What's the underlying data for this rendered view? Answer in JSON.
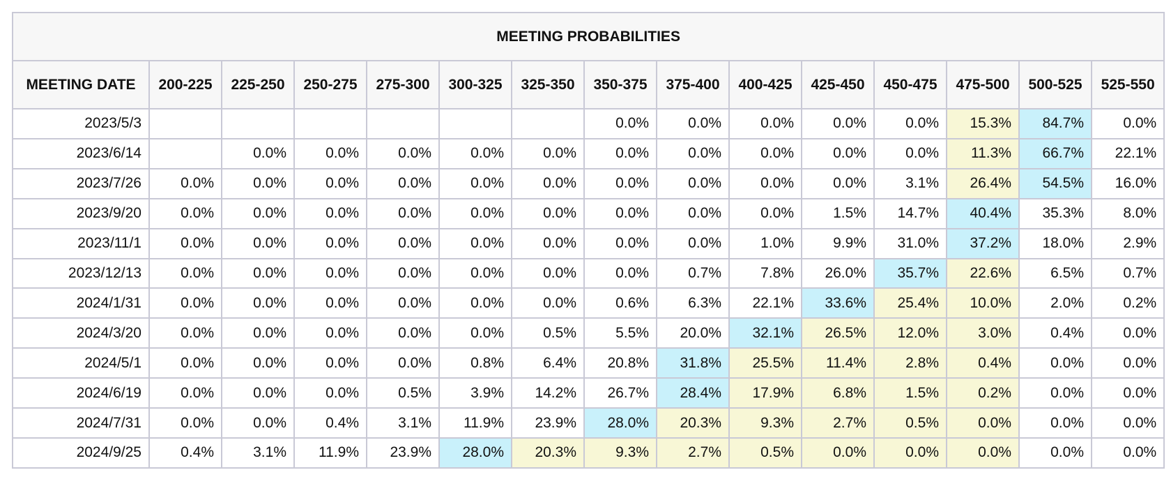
{
  "title": "MEETING PROBABILITIES",
  "header": {
    "date_col": "MEETING DATE",
    "ranges": [
      "200-225",
      "225-250",
      "250-275",
      "275-300",
      "300-325",
      "325-350",
      "350-375",
      "375-400",
      "400-425",
      "425-450",
      "450-475",
      "475-500",
      "500-525",
      "525-550"
    ]
  },
  "colors": {
    "mode": "#c9f1fb",
    "near": "#f8f7d6",
    "border": "#c9c9d6",
    "header_bg": "#f7f7f7"
  },
  "rows": [
    {
      "date": "2023/5/3",
      "values": [
        "",
        "",
        "",
        "",
        "",
        "",
        "0.0%",
        "0.0%",
        "0.0%",
        "0.0%",
        "0.0%",
        "15.3%",
        "84.7%",
        "0.0%"
      ],
      "hl": [
        "",
        "",
        "",
        "",
        "",
        "",
        "",
        "",
        "",
        "",
        "",
        "y",
        "b",
        ""
      ]
    },
    {
      "date": "2023/6/14",
      "values": [
        "",
        "0.0%",
        "0.0%",
        "0.0%",
        "0.0%",
        "0.0%",
        "0.0%",
        "0.0%",
        "0.0%",
        "0.0%",
        "0.0%",
        "11.3%",
        "66.7%",
        "22.1%"
      ],
      "hl": [
        "",
        "",
        "",
        "",
        "",
        "",
        "",
        "",
        "",
        "",
        "",
        "y",
        "b",
        ""
      ]
    },
    {
      "date": "2023/7/26",
      "values": [
        "0.0%",
        "0.0%",
        "0.0%",
        "0.0%",
        "0.0%",
        "0.0%",
        "0.0%",
        "0.0%",
        "0.0%",
        "0.0%",
        "3.1%",
        "26.4%",
        "54.5%",
        "16.0%"
      ],
      "hl": [
        "",
        "",
        "",
        "",
        "",
        "",
        "",
        "",
        "",
        "",
        "",
        "y",
        "b",
        ""
      ]
    },
    {
      "date": "2023/9/20",
      "values": [
        "0.0%",
        "0.0%",
        "0.0%",
        "0.0%",
        "0.0%",
        "0.0%",
        "0.0%",
        "0.0%",
        "0.0%",
        "1.5%",
        "14.7%",
        "40.4%",
        "35.3%",
        "8.0%"
      ],
      "hl": [
        "",
        "",
        "",
        "",
        "",
        "",
        "",
        "",
        "",
        "",
        "",
        "b",
        "",
        ""
      ]
    },
    {
      "date": "2023/11/1",
      "values": [
        "0.0%",
        "0.0%",
        "0.0%",
        "0.0%",
        "0.0%",
        "0.0%",
        "0.0%",
        "0.0%",
        "1.0%",
        "9.9%",
        "31.0%",
        "37.2%",
        "18.0%",
        "2.9%"
      ],
      "hl": [
        "",
        "",
        "",
        "",
        "",
        "",
        "",
        "",
        "",
        "",
        "",
        "b",
        "",
        ""
      ]
    },
    {
      "date": "2023/12/13",
      "values": [
        "0.0%",
        "0.0%",
        "0.0%",
        "0.0%",
        "0.0%",
        "0.0%",
        "0.0%",
        "0.7%",
        "7.8%",
        "26.0%",
        "35.7%",
        "22.6%",
        "6.5%",
        "0.7%"
      ],
      "hl": [
        "",
        "",
        "",
        "",
        "",
        "",
        "",
        "",
        "",
        "",
        "b",
        "y",
        "",
        ""
      ]
    },
    {
      "date": "2024/1/31",
      "values": [
        "0.0%",
        "0.0%",
        "0.0%",
        "0.0%",
        "0.0%",
        "0.0%",
        "0.6%",
        "6.3%",
        "22.1%",
        "33.6%",
        "25.4%",
        "10.0%",
        "2.0%",
        "0.2%"
      ],
      "hl": [
        "",
        "",
        "",
        "",
        "",
        "",
        "",
        "",
        "",
        "b",
        "y",
        "y",
        "",
        ""
      ]
    },
    {
      "date": "2024/3/20",
      "values": [
        "0.0%",
        "0.0%",
        "0.0%",
        "0.0%",
        "0.0%",
        "0.5%",
        "5.5%",
        "20.0%",
        "32.1%",
        "26.5%",
        "12.0%",
        "3.0%",
        "0.4%",
        "0.0%"
      ],
      "hl": [
        "",
        "",
        "",
        "",
        "",
        "",
        "",
        "",
        "b",
        "y",
        "y",
        "y",
        "",
        ""
      ]
    },
    {
      "date": "2024/5/1",
      "values": [
        "0.0%",
        "0.0%",
        "0.0%",
        "0.0%",
        "0.8%",
        "6.4%",
        "20.8%",
        "31.8%",
        "25.5%",
        "11.4%",
        "2.8%",
        "0.4%",
        "0.0%",
        "0.0%"
      ],
      "hl": [
        "",
        "",
        "",
        "",
        "",
        "",
        "",
        "b",
        "y",
        "y",
        "y",
        "y",
        "",
        ""
      ]
    },
    {
      "date": "2024/6/19",
      "values": [
        "0.0%",
        "0.0%",
        "0.0%",
        "0.5%",
        "3.9%",
        "14.2%",
        "26.7%",
        "28.4%",
        "17.9%",
        "6.8%",
        "1.5%",
        "0.2%",
        "0.0%",
        "0.0%"
      ],
      "hl": [
        "",
        "",
        "",
        "",
        "",
        "",
        "",
        "b",
        "y",
        "y",
        "y",
        "y",
        "",
        ""
      ]
    },
    {
      "date": "2024/7/31",
      "values": [
        "0.0%",
        "0.0%",
        "0.4%",
        "3.1%",
        "11.9%",
        "23.9%",
        "28.0%",
        "20.3%",
        "9.3%",
        "2.7%",
        "0.5%",
        "0.0%",
        "0.0%",
        "0.0%"
      ],
      "hl": [
        "",
        "",
        "",
        "",
        "",
        "",
        "b",
        "y",
        "y",
        "y",
        "y",
        "y",
        "",
        ""
      ]
    },
    {
      "date": "2024/9/25",
      "values": [
        "0.4%",
        "3.1%",
        "11.9%",
        "23.9%",
        "28.0%",
        "20.3%",
        "9.3%",
        "2.7%",
        "0.5%",
        "0.0%",
        "0.0%",
        "0.0%",
        "0.0%",
        "0.0%"
      ],
      "hl": [
        "",
        "",
        "",
        "",
        "b",
        "y",
        "y",
        "y",
        "y",
        "y",
        "y",
        "y",
        "",
        ""
      ]
    }
  ]
}
